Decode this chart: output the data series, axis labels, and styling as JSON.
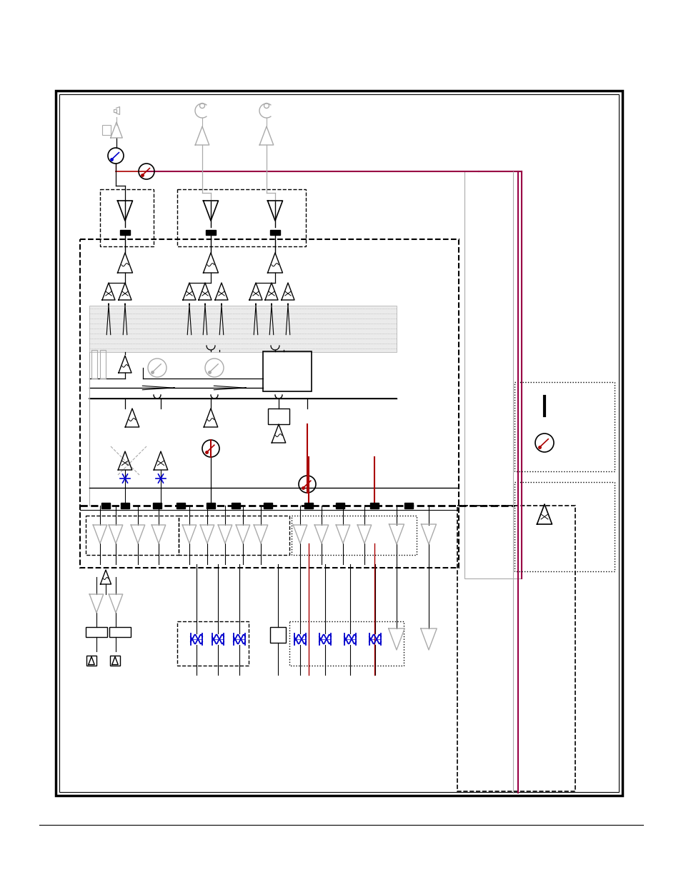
{
  "background": "#ffffff",
  "lc": "#000000",
  "rc": "#aa0000",
  "pc": "#990044",
  "gc": "#aaaaaa",
  "bc": "#0000cc",
  "dark_red": "#880033"
}
